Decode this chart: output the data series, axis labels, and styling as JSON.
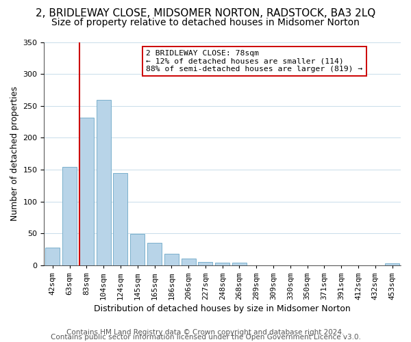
{
  "title": "2, BRIDLEWAY CLOSE, MIDSOMER NORTON, RADSTOCK, BA3 2LQ",
  "subtitle": "Size of property relative to detached houses in Midsomer Norton",
  "xlabel": "Distribution of detached houses by size in Midsomer Norton",
  "ylabel": "Number of detached properties",
  "bar_values": [
    28,
    154,
    232,
    259,
    145,
    49,
    35,
    18,
    11,
    5,
    4,
    4,
    0,
    0,
    0,
    0,
    0,
    0,
    0,
    0,
    3
  ],
  "bar_labels": [
    "42sqm",
    "63sqm",
    "83sqm",
    "104sqm",
    "124sqm",
    "145sqm",
    "165sqm",
    "186sqm",
    "206sqm",
    "227sqm",
    "248sqm",
    "268sqm",
    "289sqm",
    "309sqm",
    "330sqm",
    "350sqm",
    "371sqm",
    "391sqm",
    "412sqm",
    "432sqm",
    "453sqm"
  ],
  "bar_color": "#b8d4e8",
  "bar_edge_color": "#7ab0cc",
  "vline_x_index": 2,
  "vline_color": "#cc0000",
  "annotation_title": "2 BRIDLEWAY CLOSE: 78sqm",
  "annotation_line1": "← 12% of detached houses are smaller (114)",
  "annotation_line2": "88% of semi-detached houses are larger (819) →",
  "annotation_box_color": "#ffffff",
  "annotation_box_edge": "#cc0000",
  "ylim": [
    0,
    350
  ],
  "yticks": [
    0,
    50,
    100,
    150,
    200,
    250,
    300,
    350
  ],
  "footer1": "Contains HM Land Registry data © Crown copyright and database right 2024.",
  "footer2": "Contains public sector information licensed under the Open Government Licence v3.0.",
  "title_fontsize": 11,
  "subtitle_fontsize": 10,
  "axis_label_fontsize": 9,
  "tick_fontsize": 8,
  "footer_fontsize": 7.5
}
